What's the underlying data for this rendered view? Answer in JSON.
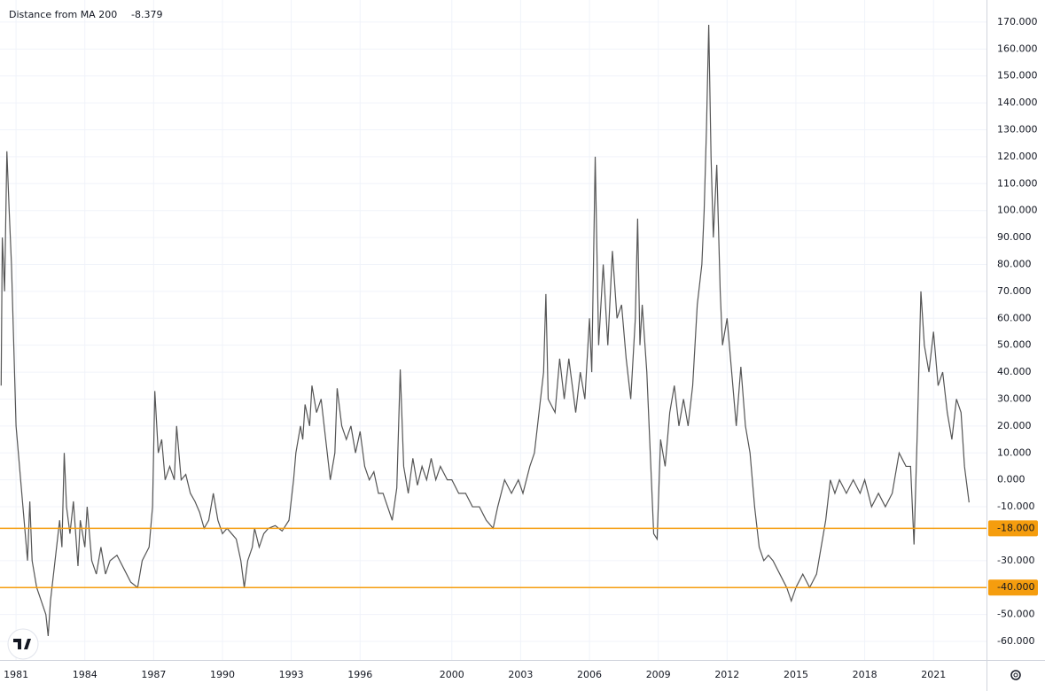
{
  "chart_data": {
    "type": "line",
    "title": "Distance from MA 200",
    "last_value": "-8.379",
    "xlim": [
      1980.3,
      2023.31
    ],
    "ylim": [
      -66.9,
      178.2
    ],
    "xticks": [
      1981,
      1984,
      1987,
      1990,
      1993,
      1996,
      2000,
      2003,
      2006,
      2009,
      2012,
      2015,
      2018,
      2021
    ],
    "yticks": [
      {
        "value": 170,
        "label": "170.000"
      },
      {
        "value": 160,
        "label": "160.000"
      },
      {
        "value": 150,
        "label": "150.000"
      },
      {
        "value": 140,
        "label": "140.000"
      },
      {
        "value": 130,
        "label": "130.000"
      },
      {
        "value": 120,
        "label": "120.000"
      },
      {
        "value": 110,
        "label": "110.000"
      },
      {
        "value": 100,
        "label": "100.000"
      },
      {
        "value": 90,
        "label": "90.000"
      },
      {
        "value": 80,
        "label": "80.000"
      },
      {
        "value": 70,
        "label": "70.000"
      },
      {
        "value": 60,
        "label": "60.000"
      },
      {
        "value": 50,
        "label": "50.000"
      },
      {
        "value": 40,
        "label": "40.000"
      },
      {
        "value": 30,
        "label": "30.000"
      },
      {
        "value": 20,
        "label": "20.000"
      },
      {
        "value": 10,
        "label": "10.000"
      },
      {
        "value": 0,
        "label": "0.000"
      },
      {
        "value": -10,
        "label": "-10.000"
      },
      {
        "value": -30,
        "label": "-30.000"
      },
      {
        "value": -50,
        "label": "-50.000"
      },
      {
        "value": -60,
        "label": "-60.000"
      }
    ],
    "grid": true,
    "levels": [
      {
        "value": -18,
        "label": "-18.000",
        "color": "#f59d0e"
      },
      {
        "value": -40,
        "label": "-40.000",
        "color": "#f59d0e"
      }
    ],
    "series": [
      {
        "color": "#555555",
        "x": [
          1980.35,
          1980.4,
          1980.5,
          1980.6,
          1980.7,
          1980.8,
          1980.9,
          1981.0,
          1981.2,
          1981.4,
          1981.5,
          1981.6,
          1981.7,
          1981.9,
          1982.1,
          1982.3,
          1982.4,
          1982.5,
          1982.7,
          1982.9,
          1983.0,
          1983.1,
          1983.2,
          1983.35,
          1983.5,
          1983.6,
          1983.7,
          1983.8,
          1984.0,
          1984.1,
          1984.3,
          1984.5,
          1984.7,
          1984.9,
          1985.1,
          1985.4,
          1985.7,
          1986.0,
          1986.3,
          1986.5,
          1986.8,
          1986.95,
          1987.05,
          1987.2,
          1987.35,
          1987.5,
          1987.7,
          1987.9,
          1988.0,
          1988.2,
          1988.4,
          1988.6,
          1988.8,
          1989.0,
          1989.2,
          1989.4,
          1989.6,
          1989.8,
          1990.0,
          1990.2,
          1990.4,
          1990.6,
          1990.8,
          1990.95,
          1991.1,
          1991.3,
          1991.4,
          1991.6,
          1991.8,
          1992.0,
          1992.3,
          1992.6,
          1992.9,
          1993.1,
          1993.2,
          1993.4,
          1993.5,
          1993.6,
          1993.8,
          1993.9,
          1994.1,
          1994.3,
          1994.5,
          1994.7,
          1994.9,
          1995.0,
          1995.2,
          1995.4,
          1995.6,
          1995.8,
          1996.0,
          1996.2,
          1996.4,
          1996.6,
          1996.8,
          1997.0,
          1997.2,
          1997.4,
          1997.6,
          1997.75,
          1997.9,
          1998.1,
          1998.3,
          1998.5,
          1998.7,
          1998.9,
          1999.1,
          1999.3,
          1999.5,
          1999.8,
          2000.0,
          2000.3,
          2000.6,
          2000.9,
          2001.2,
          2001.5,
          2001.8,
          2002.0,
          2002.3,
          2002.6,
          2002.9,
          2003.1,
          2003.4,
          2003.6,
          2003.8,
          2004.0,
          2004.1,
          2004.2,
          2004.5,
          2004.7,
          2004.9,
          2005.1,
          2005.4,
          2005.6,
          2005.8,
          2006.0,
          2006.1,
          2006.25,
          2006.4,
          2006.6,
          2006.8,
          2007.0,
          2007.2,
          2007.4,
          2007.6,
          2007.8,
          2008.0,
          2008.1,
          2008.2,
          2008.3,
          2008.5,
          2008.7,
          2008.8,
          2008.95,
          2009.1,
          2009.3,
          2009.5,
          2009.7,
          2009.9,
          2010.1,
          2010.3,
          2010.5,
          2010.7,
          2010.9,
          2011.0,
          2011.1,
          2011.2,
          2011.3,
          2011.4,
          2011.55,
          2011.7,
          2011.8,
          2012.0,
          2012.2,
          2012.4,
          2012.6,
          2012.8,
          2013.0,
          2013.2,
          2013.4,
          2013.6,
          2013.8,
          2014.0,
          2014.3,
          2014.6,
          2014.8,
          2015.0,
          2015.3,
          2015.6,
          2015.9,
          2016.1,
          2016.3,
          2016.5,
          2016.7,
          2016.9,
          2017.2,
          2017.5,
          2017.8,
          2018.0,
          2018.3,
          2018.6,
          2018.9,
          2019.2,
          2019.5,
          2019.8,
          2020.0,
          2020.15,
          2020.3,
          2020.45,
          2020.6,
          2020.8,
          2021.0,
          2021.2,
          2021.4,
          2021.6,
          2021.8,
          2022.0,
          2022.2,
          2022.35,
          2022.55
        ],
        "values": [
          35,
          90,
          70,
          122,
          100,
          80,
          50,
          20,
          0,
          -20,
          -30,
          -8,
          -30,
          -40,
          -45,
          -50,
          -58,
          -45,
          -30,
          -15,
          -25,
          10,
          -10,
          -20,
          -8,
          -20,
          -32,
          -15,
          -25,
          -10,
          -30,
          -35,
          -25,
          -35,
          -30,
          -28,
          -33,
          -38,
          -40,
          -30,
          -25,
          -10,
          33,
          10,
          15,
          0,
          5,
          0,
          20,
          0,
          2,
          -5,
          -8,
          -12,
          -18,
          -15,
          -5,
          -15,
          -20,
          -18,
          -20,
          -22,
          -30,
          -40,
          -30,
          -25,
          -18,
          -25,
          -20,
          -18,
          -17,
          -19,
          -15,
          0,
          10,
          20,
          15,
          28,
          20,
          35,
          25,
          30,
          15,
          0,
          10,
          34,
          20,
          15,
          20,
          10,
          18,
          5,
          0,
          3,
          -5,
          -5,
          -10,
          -15,
          -3,
          41,
          5,
          -5,
          8,
          -2,
          5,
          0,
          8,
          0,
          5,
          0,
          0,
          -5,
          -5,
          -10,
          -10,
          -15,
          -18,
          -10,
          0,
          -5,
          0,
          -5,
          5,
          10,
          25,
          40,
          69,
          30,
          25,
          45,
          30,
          45,
          25,
          40,
          30,
          60,
          40,
          120,
          50,
          80,
          50,
          85,
          60,
          65,
          45,
          30,
          60,
          97,
          50,
          65,
          40,
          0,
          -20,
          -22,
          15,
          5,
          25,
          35,
          20,
          30,
          20,
          35,
          65,
          80,
          100,
          130,
          169,
          120,
          90,
          117,
          70,
          50,
          60,
          40,
          20,
          42,
          20,
          10,
          -10,
          -25,
          -30,
          -28,
          -30,
          -35,
          -40,
          -45,
          -40,
          -35,
          -40,
          -35,
          -25,
          -15,
          0,
          -5,
          0,
          -5,
          0,
          -5,
          0,
          -10,
          -5,
          -10,
          -5,
          10,
          5,
          5,
          -24,
          20,
          70,
          50,
          40,
          55,
          35,
          40,
          25,
          15,
          30,
          25,
          5,
          -8.379
        ]
      }
    ]
  }
}
